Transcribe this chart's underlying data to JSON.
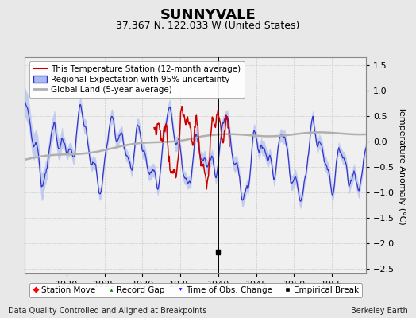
{
  "title": "SUNNYVALE",
  "subtitle": "37.367 N, 122.033 W (United States)",
  "ylabel": "Temperature Anomaly (°C)",
  "footer_left": "Data Quality Controlled and Aligned at Breakpoints",
  "footer_right": "Berkeley Earth",
  "xlim": [
    1914.5,
    1959.5
  ],
  "ylim": [
    -2.6,
    1.65
  ],
  "xticks": [
    1920,
    1925,
    1930,
    1935,
    1940,
    1945,
    1950,
    1955
  ],
  "yticks": [
    -2.5,
    -2.0,
    -1.5,
    -1.0,
    -0.5,
    0.0,
    0.5,
    1.0,
    1.5
  ],
  "bg_color": "#e8e8e8",
  "plot_bg_color": "#f0f0f0",
  "grid_color": "#cccccc",
  "empirical_break_x": 1940.0,
  "empirical_break_y": -2.18,
  "title_fontsize": 13,
  "subtitle_fontsize": 9,
  "legend_fontsize": 7.5,
  "axis_fontsize": 8,
  "footer_fontsize": 7,
  "regional_color": "#3333cc",
  "regional_fill_color": "#aabbee",
  "station_color": "#cc0000",
  "global_color": "#b0b0b0",
  "station_start": 1931.5,
  "station_end": 1941.5,
  "legend_items": [
    "This Temperature Station (12-month average)",
    "Regional Expectation with 95% uncertainty",
    "Global Land (5-year average)"
  ]
}
